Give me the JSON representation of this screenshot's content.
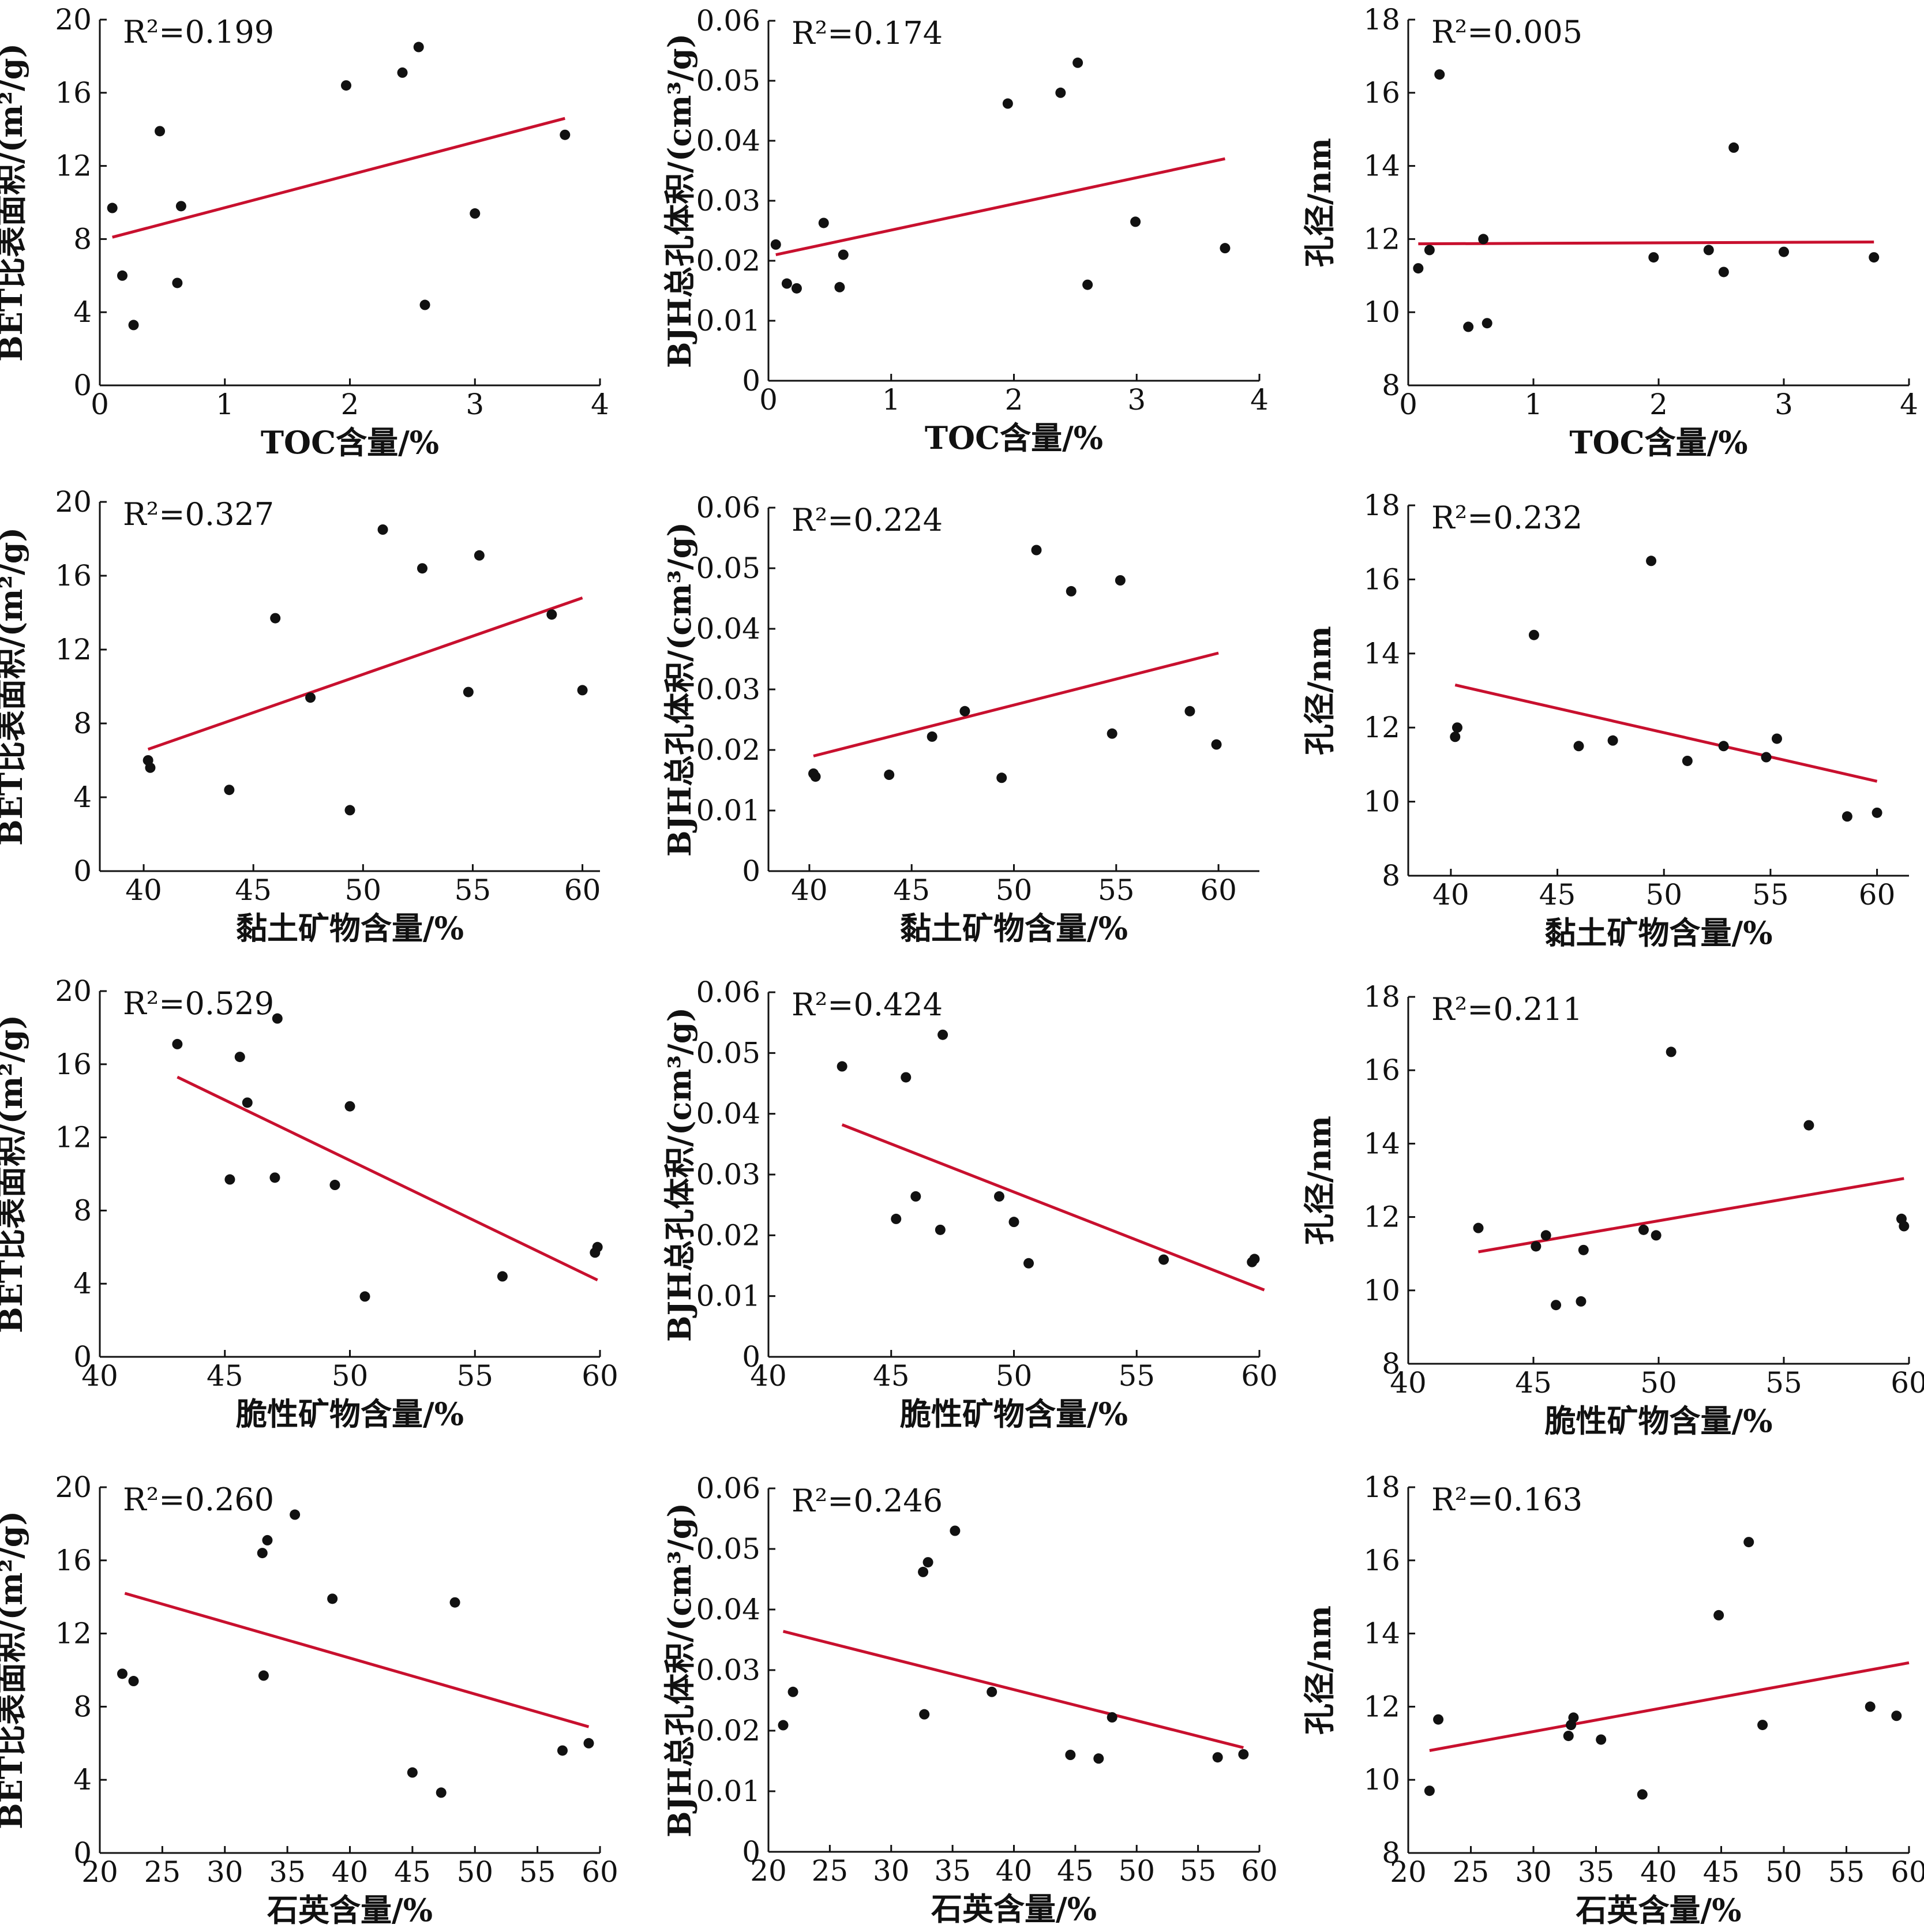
{
  "chart_data": [
    {
      "type": "scatter",
      "title": "",
      "xlabel": "TOC含量/%",
      "ylabel": "BET比表面积/(m²/g)",
      "r2_label": "R²=0.199",
      "xlim": [
        0,
        4
      ],
      "ylim": [
        0,
        20
      ],
      "xticks": [
        0,
        1,
        2,
        3,
        4
      ],
      "yticks": [
        0,
        4,
        8,
        12,
        16,
        20
      ],
      "fit_color": "#c8102e",
      "points": [
        [
          0.1,
          9.7
        ],
        [
          0.18,
          6.0
        ],
        [
          0.27,
          3.3
        ],
        [
          0.48,
          13.9
        ],
        [
          0.62,
          5.6
        ],
        [
          0.65,
          9.8
        ],
        [
          1.97,
          16.4
        ],
        [
          2.42,
          17.1
        ],
        [
          2.55,
          18.5
        ],
        [
          2.6,
          4.4
        ],
        [
          3.0,
          9.4
        ],
        [
          3.72,
          13.7
        ]
      ],
      "fit": [
        [
          0.1,
          8.1
        ],
        [
          3.72,
          14.6
        ]
      ]
    },
    {
      "type": "scatter",
      "title": "",
      "xlabel": "TOC含量/%",
      "ylabel": "BJH总孔体积/(cm³/g)",
      "r2_label": "R²=0.174",
      "xlim": [
        0,
        4
      ],
      "ylim": [
        0,
        0.06
      ],
      "xticks": [
        0,
        1,
        2,
        3,
        4
      ],
      "yticks": [
        0,
        0.01,
        0.02,
        0.03,
        0.04,
        0.05,
        0.06
      ],
      "fit_color": "#c8102e",
      "points": [
        [
          0.06,
          0.0227
        ],
        [
          0.15,
          0.0162
        ],
        [
          0.23,
          0.0154
        ],
        [
          0.45,
          0.0263
        ],
        [
          0.58,
          0.0156
        ],
        [
          0.61,
          0.021
        ],
        [
          1.95,
          0.0462
        ],
        [
          2.38,
          0.048
        ],
        [
          2.52,
          0.053
        ],
        [
          2.6,
          0.016
        ],
        [
          2.99,
          0.0265
        ],
        [
          3.72,
          0.0221
        ]
      ],
      "fit": [
        [
          0.06,
          0.021
        ],
        [
          3.72,
          0.037
        ]
      ]
    },
    {
      "type": "scatter",
      "title": "",
      "xlabel": "TOC含量/%",
      "ylabel": "孔径/nm",
      "r2_label": "R²=0.005",
      "xlim": [
        0,
        4
      ],
      "ylim": [
        8,
        18
      ],
      "xticks": [
        0,
        1,
        2,
        3,
        4
      ],
      "yticks": [
        8,
        10,
        12,
        14,
        16,
        18
      ],
      "fit_color": "#c8102e",
      "points": [
        [
          0.08,
          11.2
        ],
        [
          0.17,
          11.7
        ],
        [
          0.25,
          16.5
        ],
        [
          0.48,
          9.6
        ],
        [
          0.6,
          12.0
        ],
        [
          0.63,
          9.7
        ],
        [
          1.96,
          11.5
        ],
        [
          2.4,
          11.7
        ],
        [
          2.52,
          11.1
        ],
        [
          2.6,
          14.5
        ],
        [
          3.0,
          11.65
        ],
        [
          3.72,
          11.5
        ]
      ],
      "fit": [
        [
          0.08,
          11.87
        ],
        [
          3.72,
          11.92
        ]
      ]
    },
    {
      "type": "scatter",
      "title": "",
      "xlabel": "黏土矿物含量/%",
      "ylabel": "BET比表面积/(m²/g)",
      "r2_label": "R²=0.327",
      "xlim": [
        38,
        60.8
      ],
      "ylim": [
        0,
        20
      ],
      "xticks": [
        40,
        45,
        50,
        55,
        60
      ],
      "yticks": [
        0,
        4,
        8,
        12,
        16,
        20
      ],
      "fit_color": "#c8102e",
      "points": [
        [
          40.2,
          6.0
        ],
        [
          40.3,
          5.6
        ],
        [
          43.9,
          4.4
        ],
        [
          46.0,
          13.7
        ],
        [
          47.6,
          9.4
        ],
        [
          49.4,
          3.3
        ],
        [
          50.9,
          18.5
        ],
        [
          52.7,
          16.4
        ],
        [
          54.8,
          9.7
        ],
        [
          55.3,
          17.1
        ],
        [
          58.6,
          13.9
        ],
        [
          60.0,
          9.8
        ]
      ],
      "fit": [
        [
          40.2,
          6.6
        ],
        [
          60.0,
          14.8
        ]
      ]
    },
    {
      "type": "scatter",
      "title": "",
      "xlabel": "黏土矿物含量/%",
      "ylabel": "BJH总孔体积/(cm³/g)",
      "r2_label": "R²=0.224",
      "xlim": [
        38,
        62
      ],
      "ylim": [
        0,
        0.06
      ],
      "xticks": [
        40,
        45,
        50,
        55,
        60
      ],
      "yticks": [
        0,
        0.01,
        0.02,
        0.03,
        0.04,
        0.05,
        0.06
      ],
      "fit_color": "#c8102e",
      "points": [
        [
          40.2,
          0.0161
        ],
        [
          40.3,
          0.0156
        ],
        [
          43.9,
          0.0159
        ],
        [
          46.0,
          0.0222
        ],
        [
          47.6,
          0.0264
        ],
        [
          49.4,
          0.0154
        ],
        [
          51.1,
          0.053
        ],
        [
          52.8,
          0.0462
        ],
        [
          54.8,
          0.0227
        ],
        [
          55.2,
          0.048
        ],
        [
          58.6,
          0.0264
        ],
        [
          59.9,
          0.0209
        ]
      ],
      "fit": [
        [
          40.2,
          0.019
        ],
        [
          60.0,
          0.036
        ]
      ]
    },
    {
      "type": "scatter",
      "title": "",
      "xlabel": "黏土矿物含量/%",
      "ylabel": "孔径/nm",
      "r2_label": "R²=0.232",
      "xlim": [
        38,
        61.5
      ],
      "ylim": [
        8,
        18
      ],
      "xticks": [
        40,
        45,
        50,
        55,
        60
      ],
      "yticks": [
        8,
        10,
        12,
        14,
        16,
        18
      ],
      "fit_color": "#c8102e",
      "points": [
        [
          40.2,
          11.75
        ],
        [
          40.3,
          12.0
        ],
        [
          43.9,
          14.5
        ],
        [
          46.0,
          11.5
        ],
        [
          47.6,
          11.65
        ],
        [
          49.4,
          16.5
        ],
        [
          51.1,
          11.1
        ],
        [
          52.8,
          11.5
        ],
        [
          54.8,
          11.2
        ],
        [
          55.3,
          11.7
        ],
        [
          58.6,
          9.6
        ],
        [
          60.0,
          9.7
        ]
      ],
      "fit": [
        [
          40.2,
          13.15
        ],
        [
          60.0,
          10.55
        ]
      ]
    },
    {
      "type": "scatter",
      "title": "",
      "xlabel": "脆性矿物含量/%",
      "ylabel": "BET比表面积/(m²/g)",
      "r2_label": "R²=0.529",
      "xlim": [
        40,
        60
      ],
      "ylim": [
        0,
        20
      ],
      "xticks": [
        40,
        45,
        50,
        55,
        60
      ],
      "yticks": [
        0,
        4,
        8,
        12,
        16,
        20
      ],
      "fit_color": "#c8102e",
      "points": [
        [
          43.1,
          17.1
        ],
        [
          45.2,
          9.7
        ],
        [
          45.6,
          16.4
        ],
        [
          45.9,
          13.9
        ],
        [
          47.0,
          9.8
        ],
        [
          47.1,
          18.5
        ],
        [
          49.4,
          9.4
        ],
        [
          50.0,
          13.7
        ],
        [
          50.6,
          3.3
        ],
        [
          56.1,
          4.4
        ],
        [
          59.8,
          5.7
        ],
        [
          59.9,
          6.0
        ]
      ],
      "fit": [
        [
          43.1,
          15.3
        ],
        [
          59.9,
          4.2
        ]
      ]
    },
    {
      "type": "scatter",
      "title": "",
      "xlabel": "脆性矿物含量/%",
      "ylabel": "BJH总孔体积/(cm³/g)",
      "r2_label": "R²=0.424",
      "xlim": [
        40,
        60
      ],
      "ylim": [
        0,
        0.06
      ],
      "xticks": [
        40,
        45,
        50,
        55,
        60
      ],
      "yticks": [
        0,
        0.01,
        0.02,
        0.03,
        0.04,
        0.05,
        0.06
      ],
      "fit_color": "#c8102e",
      "points": [
        [
          43.0,
          0.0478
        ],
        [
          45.2,
          0.0227
        ],
        [
          45.6,
          0.046
        ],
        [
          46.0,
          0.0264
        ],
        [
          47.0,
          0.0209
        ],
        [
          47.1,
          0.053
        ],
        [
          49.4,
          0.0264
        ],
        [
          50.0,
          0.0222
        ],
        [
          50.6,
          0.0154
        ],
        [
          56.1,
          0.016
        ],
        [
          59.7,
          0.0156
        ],
        [
          59.8,
          0.0161
        ]
      ],
      "fit": [
        [
          43.0,
          0.0382
        ],
        [
          60.2,
          0.011
        ]
      ]
    },
    {
      "type": "scatter",
      "title": "",
      "xlabel": "脆性矿物含量/%",
      "ylabel": "孔径/nm",
      "r2_label": "R²=0.211",
      "xlim": [
        40,
        60
      ],
      "ylim": [
        8,
        18
      ],
      "xticks": [
        40,
        45,
        50,
        55,
        60
      ],
      "yticks": [
        8,
        10,
        12,
        14,
        16,
        18
      ],
      "fit_color": "#c8102e",
      "points": [
        [
          42.8,
          11.7
        ],
        [
          45.1,
          11.2
        ],
        [
          45.5,
          11.5
        ],
        [
          45.9,
          9.6
        ],
        [
          46.9,
          9.7
        ],
        [
          47.0,
          11.1
        ],
        [
          49.4,
          11.65
        ],
        [
          49.9,
          11.5
        ],
        [
          50.5,
          16.5
        ],
        [
          56.0,
          14.5
        ],
        [
          59.7,
          11.95
        ],
        [
          59.8,
          11.75
        ]
      ],
      "fit": [
        [
          42.8,
          11.05
        ],
        [
          59.8,
          13.05
        ]
      ]
    },
    {
      "type": "scatter",
      "title": "",
      "xlabel": "石英含量/%",
      "ylabel": "BET比表面积/(m²/g)",
      "r2_label": "R²=0.260",
      "xlim": [
        20,
        60
      ],
      "ylim": [
        0,
        20
      ],
      "xticks": [
        20,
        25,
        30,
        35,
        40,
        45,
        50,
        55,
        60
      ],
      "yticks": [
        0,
        4,
        8,
        12,
        16,
        20
      ],
      "fit_color": "#c8102e",
      "points": [
        [
          21.8,
          9.8
        ],
        [
          22.7,
          9.4
        ],
        [
          33.0,
          16.4
        ],
        [
          33.1,
          9.7
        ],
        [
          33.4,
          17.1
        ],
        [
          35.6,
          18.5
        ],
        [
          38.6,
          13.9
        ],
        [
          45.0,
          4.4
        ],
        [
          47.3,
          3.3
        ],
        [
          48.4,
          13.7
        ],
        [
          57.0,
          5.6
        ],
        [
          59.1,
          6.0
        ]
      ],
      "fit": [
        [
          22.0,
          14.2
        ],
        [
          59.1,
          6.9
        ]
      ]
    },
    {
      "type": "scatter",
      "title": "",
      "xlabel": "石英含量/%",
      "ylabel": "BJH总孔体积/(cm³/g)",
      "r2_label": "R²=0.246",
      "xlim": [
        20,
        60
      ],
      "ylim": [
        0,
        0.06
      ],
      "xticks": [
        20,
        25,
        30,
        35,
        40,
        45,
        50,
        55,
        60
      ],
      "yticks": [
        0,
        0.01,
        0.02,
        0.03,
        0.04,
        0.05,
        0.06
      ],
      "fit_color": "#c8102e",
      "points": [
        [
          21.2,
          0.0209
        ],
        [
          22.0,
          0.0264
        ],
        [
          32.6,
          0.0462
        ],
        [
          32.7,
          0.0227
        ],
        [
          33.0,
          0.0478
        ],
        [
          35.2,
          0.053
        ],
        [
          38.2,
          0.0264
        ],
        [
          44.6,
          0.016
        ],
        [
          46.9,
          0.0154
        ],
        [
          48.0,
          0.0222
        ],
        [
          56.6,
          0.0156
        ],
        [
          58.7,
          0.0161
        ]
      ],
      "fit": [
        [
          21.2,
          0.0364
        ],
        [
          58.7,
          0.0172
        ]
      ]
    },
    {
      "type": "scatter",
      "title": "",
      "xlabel": "石英含量/%",
      "ylabel": "孔径/nm",
      "r2_label": "R²=0.163",
      "xlim": [
        20,
        60
      ],
      "ylim": [
        8,
        18
      ],
      "xticks": [
        20,
        25,
        30,
        35,
        40,
        45,
        50,
        55,
        60
      ],
      "yticks": [
        8,
        10,
        12,
        14,
        16,
        18
      ],
      "fit_color": "#c8102e",
      "points": [
        [
          21.7,
          9.7
        ],
        [
          22.4,
          11.65
        ],
        [
          32.8,
          11.2
        ],
        [
          33.0,
          11.5
        ],
        [
          33.2,
          11.7
        ],
        [
          35.4,
          11.1
        ],
        [
          38.7,
          9.6
        ],
        [
          44.8,
          14.5
        ],
        [
          47.2,
          16.5
        ],
        [
          48.3,
          11.5
        ],
        [
          56.9,
          12.0
        ],
        [
          59.0,
          11.75
        ]
      ],
      "fit": [
        [
          21.7,
          10.8
        ],
        [
          60.0,
          13.2
        ]
      ]
    }
  ]
}
